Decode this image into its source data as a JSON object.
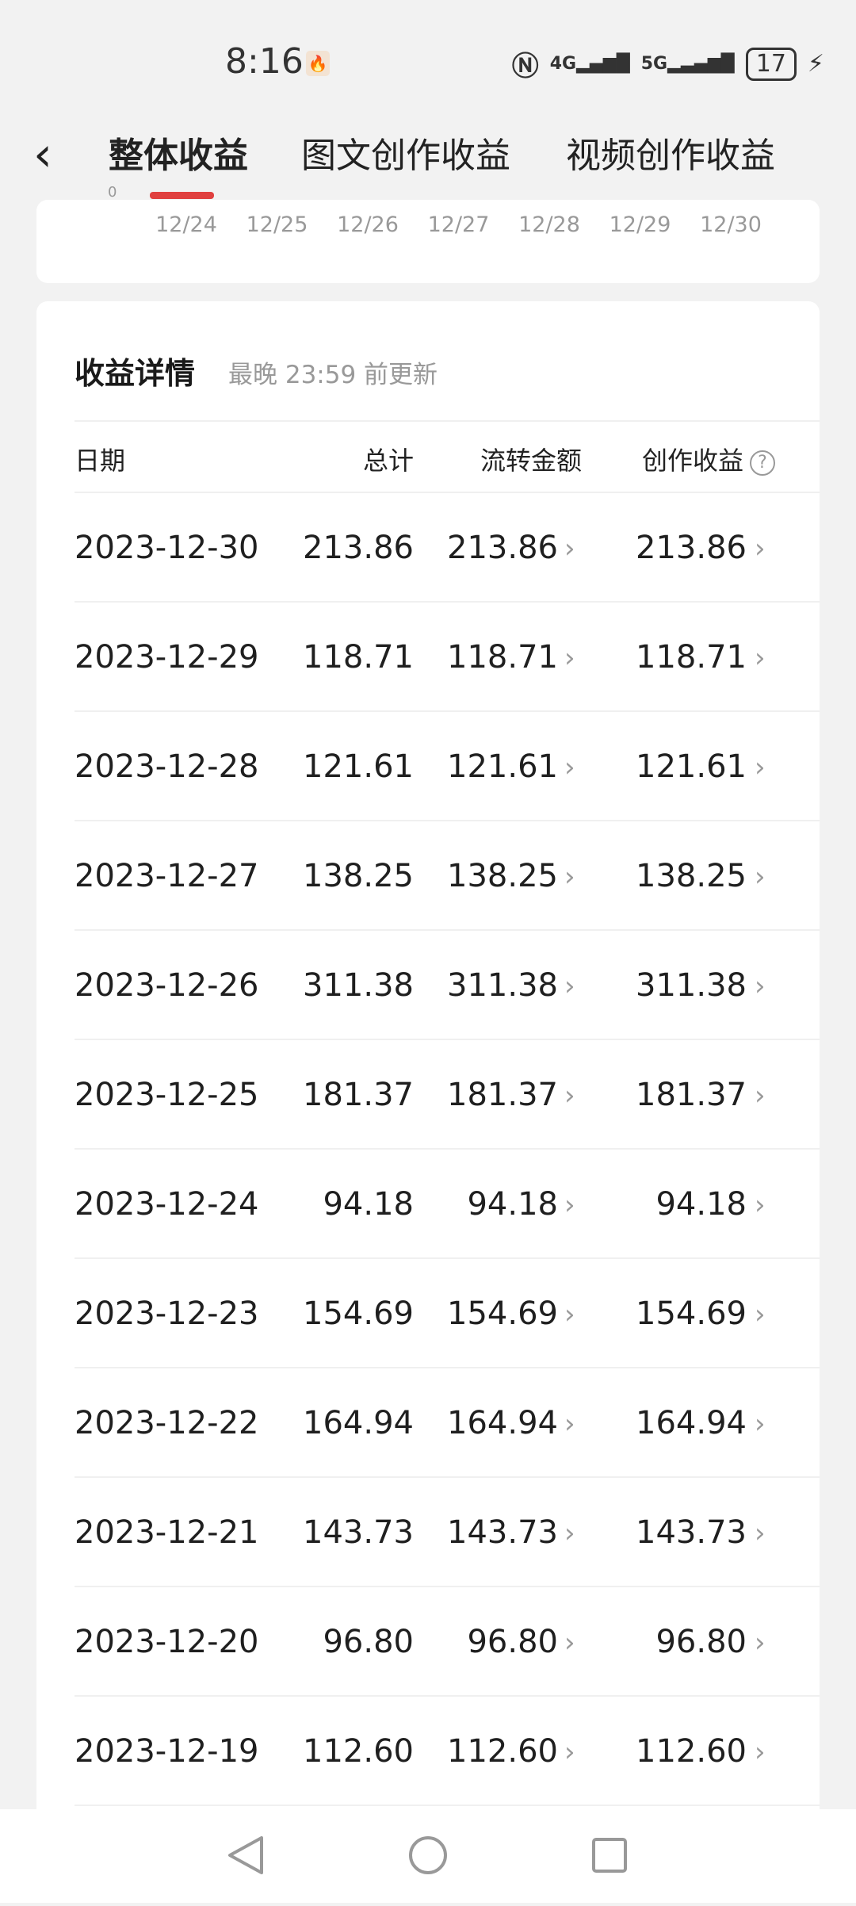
{
  "status_bar": {
    "time": "8:16",
    "network_1": "4G",
    "network_2": "5G",
    "battery": "17"
  },
  "tabs": [
    {
      "label": "整体收益",
      "active": true
    },
    {
      "label": "图文创作收益"
    },
    {
      "label": "视频创作收益"
    }
  ],
  "accent_color": "#e0403f",
  "chart": {
    "y_tick": "0",
    "x_ticks": [
      "12/24",
      "12/25",
      "12/26",
      "12/27",
      "12/28",
      "12/29",
      "12/30"
    ]
  },
  "details": {
    "title": "收益详情",
    "subtitle": "最晚 23:59 前更新",
    "headers": {
      "date": "日期",
      "total": "总计",
      "flow": "流转金额",
      "creation": "创作收益"
    },
    "rows": [
      {
        "date": "2023-12-30",
        "total": "213.86",
        "flow": "213.86",
        "creation": "213.86"
      },
      {
        "date": "2023-12-29",
        "total": "118.71",
        "flow": "118.71",
        "creation": "118.71"
      },
      {
        "date": "2023-12-28",
        "total": "121.61",
        "flow": "121.61",
        "creation": "121.61"
      },
      {
        "date": "2023-12-27",
        "total": "138.25",
        "flow": "138.25",
        "creation": "138.25"
      },
      {
        "date": "2023-12-26",
        "total": "311.38",
        "flow": "311.38",
        "creation": "311.38"
      },
      {
        "date": "2023-12-25",
        "total": "181.37",
        "flow": "181.37",
        "creation": "181.37"
      },
      {
        "date": "2023-12-24",
        "total": "94.18",
        "flow": "94.18",
        "creation": "94.18"
      },
      {
        "date": "2023-12-23",
        "total": "154.69",
        "flow": "154.69",
        "creation": "154.69"
      },
      {
        "date": "2023-12-22",
        "total": "164.94",
        "flow": "164.94",
        "creation": "164.94"
      },
      {
        "date": "2023-12-21",
        "total": "143.73",
        "flow": "143.73",
        "creation": "143.73"
      },
      {
        "date": "2023-12-20",
        "total": "96.80",
        "flow": "96.80",
        "creation": "96.80"
      },
      {
        "date": "2023-12-19",
        "total": "112.60",
        "flow": "112.60",
        "creation": "112.60"
      }
    ]
  }
}
